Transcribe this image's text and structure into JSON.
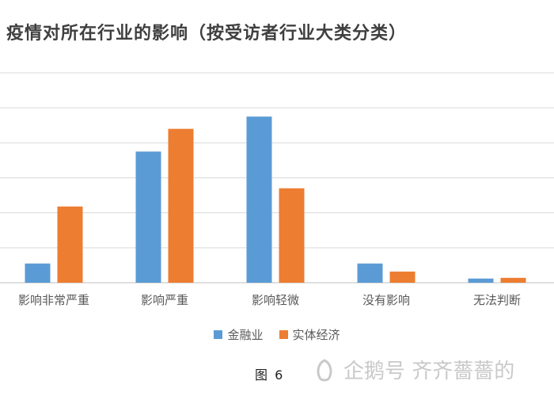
{
  "chart_data": {
    "type": "bar",
    "title": "疫情对所在行业的影响（按受访者行业大类分类）",
    "categories": [
      "影响非常严重",
      "影响严重",
      "影响轻微",
      "没有影响",
      "无法判断"
    ],
    "series": [
      {
        "name": "金融业",
        "values": [
          5.5,
          37.5,
          47.5,
          5.5,
          1.2
        ],
        "color": "#5b9bd5"
      },
      {
        "name": "实体经济",
        "values": [
          21.8,
          44.0,
          27.0,
          3.2,
          1.4
        ],
        "color": "#ed7d31"
      }
    ],
    "ylim": [
      0,
      60
    ],
    "grid": true,
    "legend_position": "bottom"
  },
  "figure_label": "图 6",
  "watermark": {
    "text": "企鹅号 齐齐薔薔的"
  }
}
